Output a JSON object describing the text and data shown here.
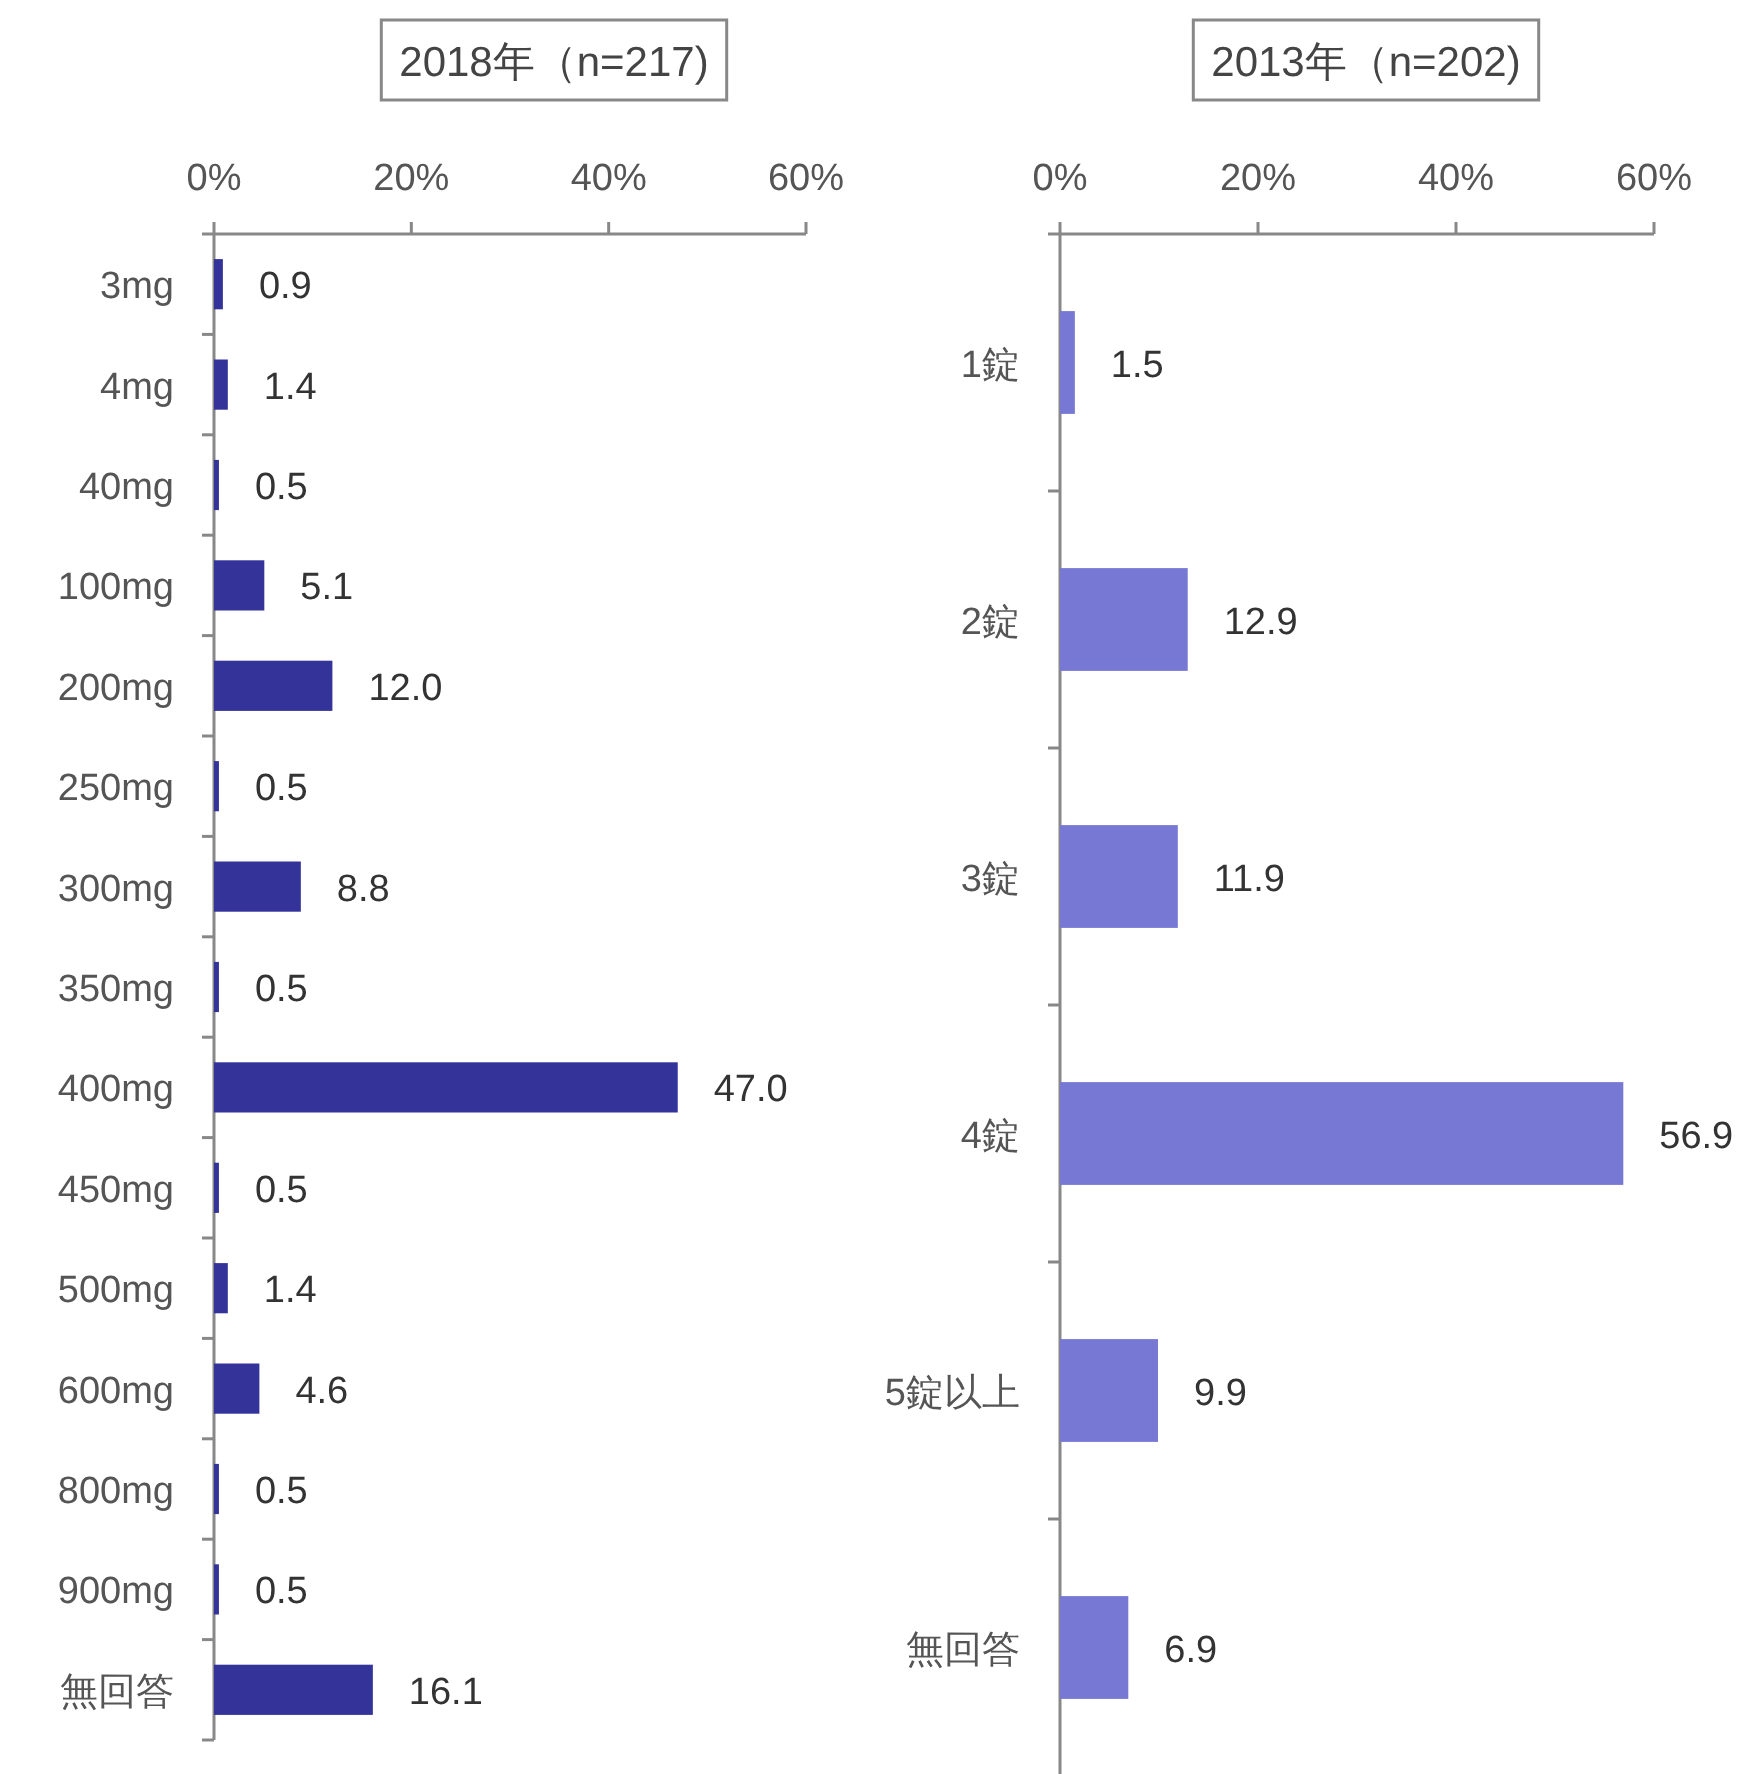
{
  "chart_data": [
    {
      "type": "bar",
      "orientation": "horizontal",
      "title": "2018年（n=217)",
      "categories": [
        "3mg",
        "4mg",
        "40mg",
        "100mg",
        "200mg",
        "250mg",
        "300mg",
        "350mg",
        "400mg",
        "450mg",
        "500mg",
        "600mg",
        "800mg",
        "900mg",
        "無回答"
      ],
      "values": [
        0.9,
        1.4,
        0.5,
        5.1,
        12.0,
        0.5,
        8.8,
        0.5,
        47.0,
        0.5,
        1.4,
        4.6,
        0.5,
        0.5,
        16.1
      ],
      "color": "#333399",
      "xlim": [
        0,
        60
      ],
      "xticks": [
        {
          "value": 0,
          "label": "0%"
        },
        {
          "value": 20,
          "label": "20%"
        },
        {
          "value": 40,
          "label": "40%"
        },
        {
          "value": 60,
          "label": "60%"
        }
      ],
      "value_labels": [
        "0.9",
        "1.4",
        "0.5",
        "5.1",
        "12.0",
        "0.5",
        "8.8",
        "0.5",
        "47.0",
        "0.5",
        "1.4",
        "4.6",
        "0.5",
        "0.5",
        "16.1"
      ]
    },
    {
      "type": "bar",
      "orientation": "horizontal",
      "title": "2013年（n=202)",
      "categories": [
        "1錠",
        "2錠",
        "3錠",
        "4錠",
        "5錠以上",
        "無回答"
      ],
      "values": [
        1.5,
        12.9,
        11.9,
        56.9,
        9.9,
        6.9
      ],
      "color": "#7777d4",
      "xlim": [
        0,
        60
      ],
      "xticks": [
        {
          "value": 0,
          "label": "0%"
        },
        {
          "value": 20,
          "label": "20%"
        },
        {
          "value": 40,
          "label": "40%"
        },
        {
          "value": 60,
          "label": "60%"
        }
      ],
      "data_labels": true
    }
  ]
}
